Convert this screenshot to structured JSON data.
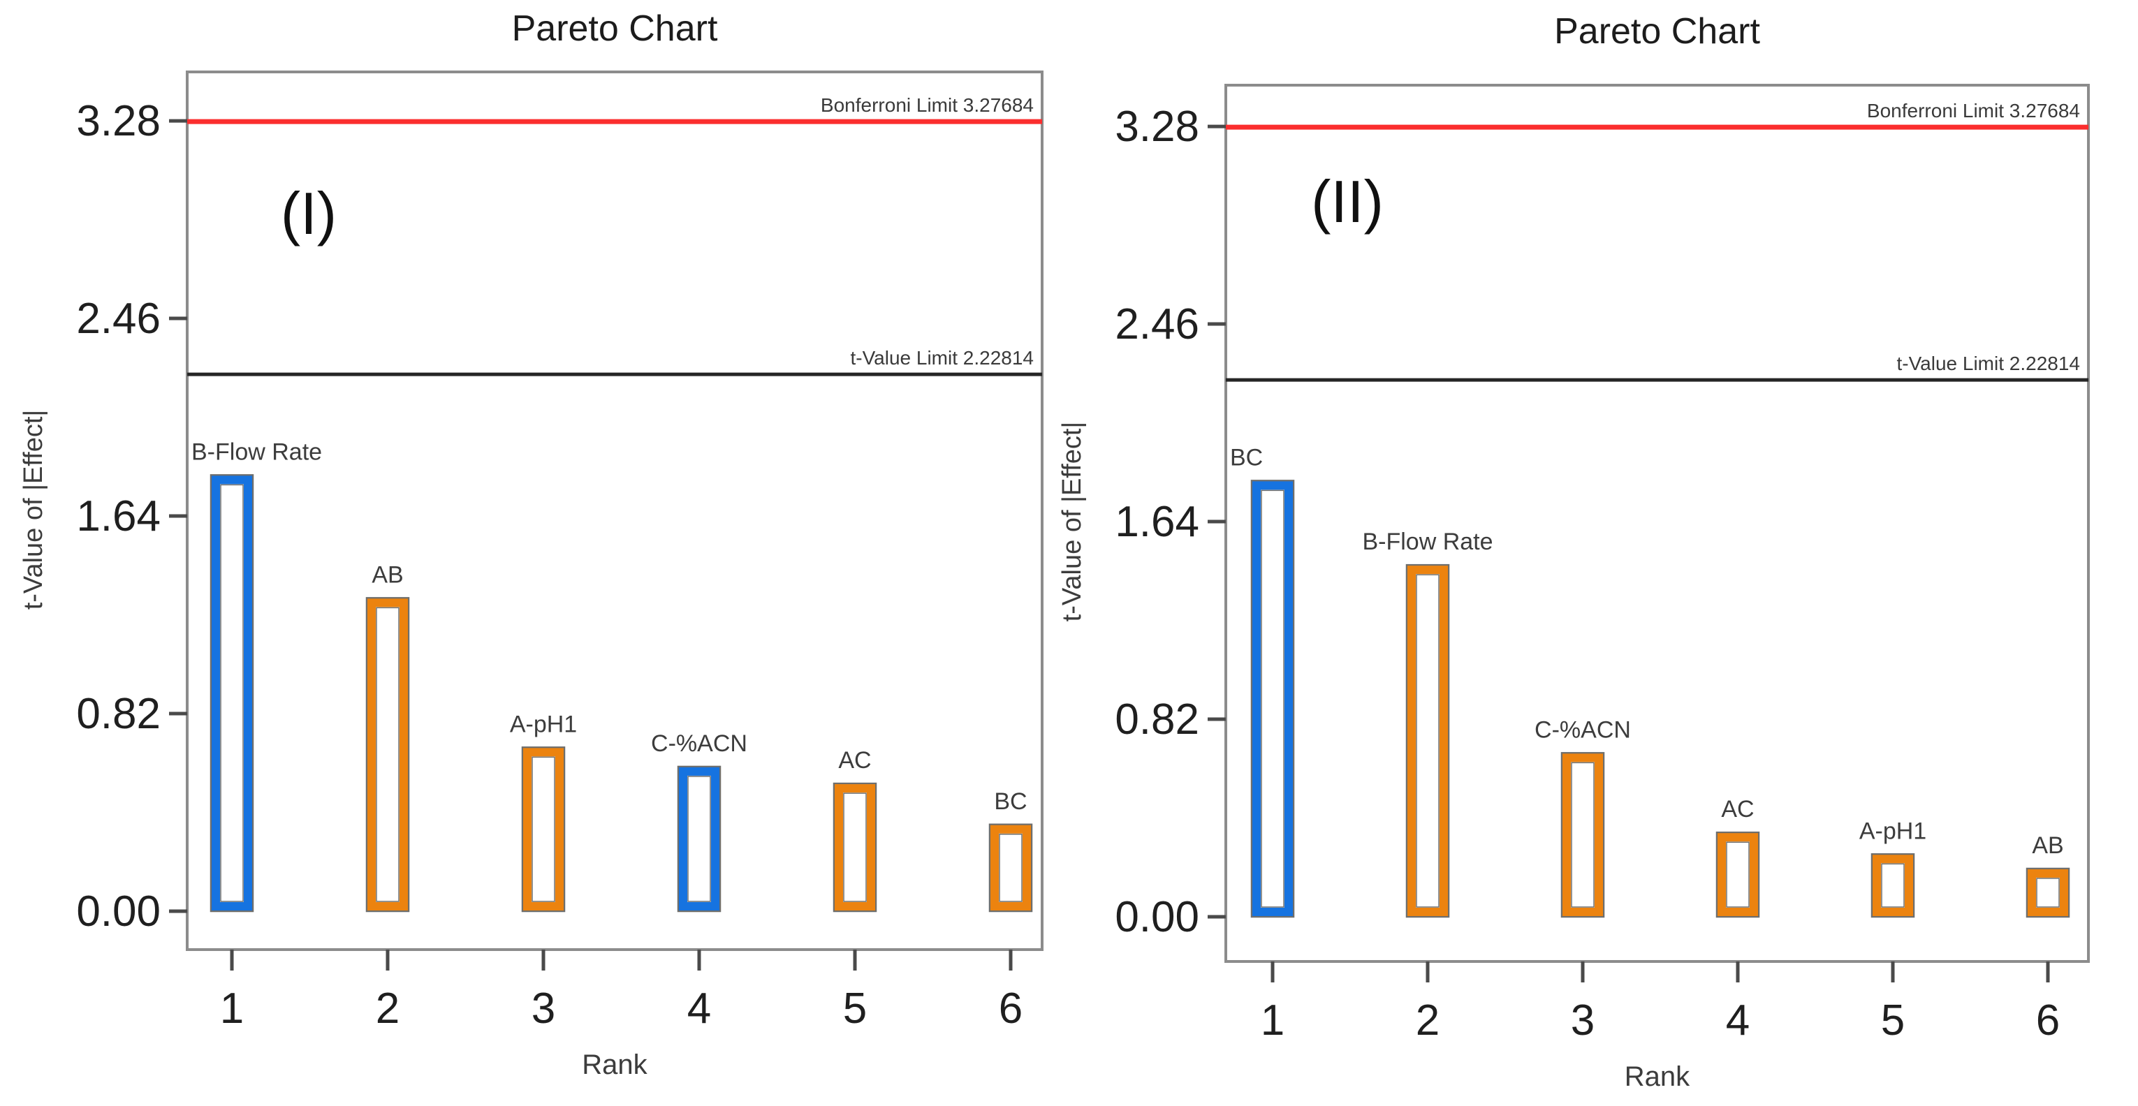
{
  "figure": {
    "description": "Two Design-Expert style Pareto charts of effect t-values, panels (I) and (II)",
    "background": "#ffffff"
  },
  "colors": {
    "blue_bar": "#1673e0",
    "orange_bar": "#ec830f",
    "bonferroni_line": "#fb2e2e",
    "tvalue_line": "#262626",
    "frame": "#8c8c8c",
    "tick": "#4a4a4a",
    "tick_text": "#1f1f1f",
    "bar_label_text": "#3c3c3c",
    "limit_text": "#3a3a3a",
    "title_text": "#1c1c1c",
    "panel_text": "#101010",
    "bar_fill": "#ffffff",
    "bar_hairline": "#6e6e6c"
  },
  "chart_data": [
    {
      "type": "bar",
      "panel_label": "(I)",
      "title": "Pareto Chart",
      "xlabel": "Rank",
      "ylabel": "t-Value of |Effect|",
      "categories": [
        "1",
        "2",
        "3",
        "4",
        "5",
        "6"
      ],
      "yticks": [
        "0.00",
        "0.82",
        "1.64",
        "2.46",
        "3.28"
      ],
      "ytick_step": 0.82,
      "ylim": [
        -0.17,
        3.48
      ],
      "grid": false,
      "legend": "none",
      "bars": [
        {
          "rank": "1",
          "label": "B-Flow Rate",
          "value": 1.81,
          "color": "blue"
        },
        {
          "rank": "2",
          "label": "AB",
          "value": 1.3,
          "color": "orange"
        },
        {
          "rank": "3",
          "label": "A-pH1",
          "value": 0.68,
          "color": "orange"
        },
        {
          "rank": "4",
          "label": "C-%ACN",
          "value": 0.6,
          "color": "blue"
        },
        {
          "rank": "5",
          "label": "AC",
          "value": 0.53,
          "color": "orange"
        },
        {
          "rank": "6",
          "label": "BC",
          "value": 0.36,
          "color": "orange"
        }
      ],
      "limits": [
        {
          "name": "bonferroni-limit",
          "label": "Bonferroni Limit 3.27684",
          "value": 3.27684,
          "color_key": "bonferroni_line"
        },
        {
          "name": "t-value-limit",
          "label": "t-Value Limit 2.22814",
          "value": 2.22814,
          "color_key": "tvalue_line"
        }
      ]
    },
    {
      "type": "bar",
      "panel_label": "(II)",
      "title": "Pareto Chart",
      "xlabel": "Rank",
      "ylabel": "t-Value of |Effect|",
      "categories": [
        "1",
        "2",
        "3",
        "4",
        "5",
        "6"
      ],
      "yticks": [
        "0.00",
        "0.82",
        "1.64",
        "2.46",
        "3.28"
      ],
      "ytick_step": 0.82,
      "ylim": [
        -0.17,
        3.48
      ],
      "grid": false,
      "legend": "none",
      "bars": [
        {
          "rank": "1",
          "label": "BC",
          "value": 1.81,
          "color": "blue"
        },
        {
          "rank": "2",
          "label": "B-Flow Rate",
          "value": 1.46,
          "color": "orange"
        },
        {
          "rank": "3",
          "label": "C-%ACN",
          "value": 0.68,
          "color": "orange"
        },
        {
          "rank": "4",
          "label": "AC",
          "value": 0.35,
          "color": "orange"
        },
        {
          "rank": "5",
          "label": "A-pH1",
          "value": 0.26,
          "color": "orange"
        },
        {
          "rank": "6",
          "label": "AB",
          "value": 0.2,
          "color": "orange"
        }
      ],
      "limits": [
        {
          "name": "bonferroni-limit",
          "label": "Bonferroni Limit 3.27684",
          "value": 3.27684,
          "color_key": "bonferroni_line"
        },
        {
          "name": "t-value-limit",
          "label": "t-Value Limit 2.22814",
          "value": 2.22814,
          "color_key": "tvalue_line"
        }
      ]
    }
  ]
}
